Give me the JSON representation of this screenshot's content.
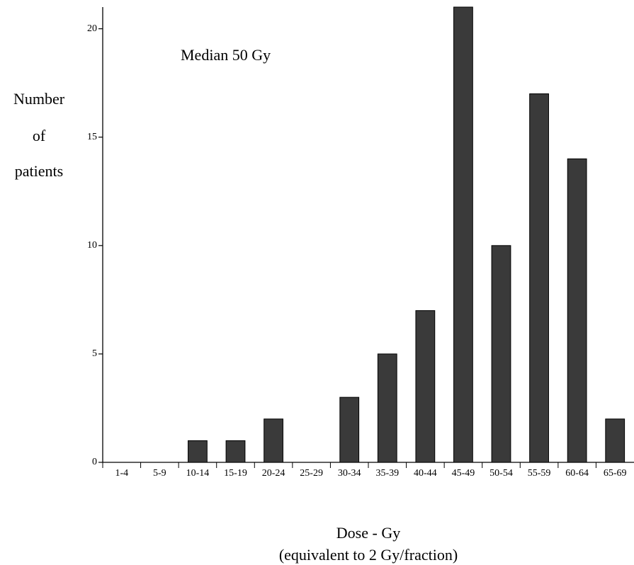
{
  "chart_data": {
    "type": "bar",
    "annotation": "Median 50 Gy",
    "y_label": [
      "Number",
      "of",
      "patients"
    ],
    "x_label": "Dose - Gy",
    "x_sublabel": "(equivalent to 2 Gy/fraction)",
    "categories": [
      "1-4",
      "5-9",
      "10-14",
      "15-19",
      "20-24",
      "25-29",
      "30-34",
      "35-39",
      "40-44",
      "45-49",
      "50-54",
      "55-59",
      "60-64",
      "65-69"
    ],
    "values": [
      0,
      0,
      1,
      1,
      2,
      0,
      3,
      5,
      7,
      21,
      10,
      17,
      14,
      2
    ],
    "color": "#3a3a3a",
    "ylim": [
      0,
      21
    ],
    "yticks": [
      0,
      5,
      10,
      15,
      20
    ],
    "grid": false
  }
}
